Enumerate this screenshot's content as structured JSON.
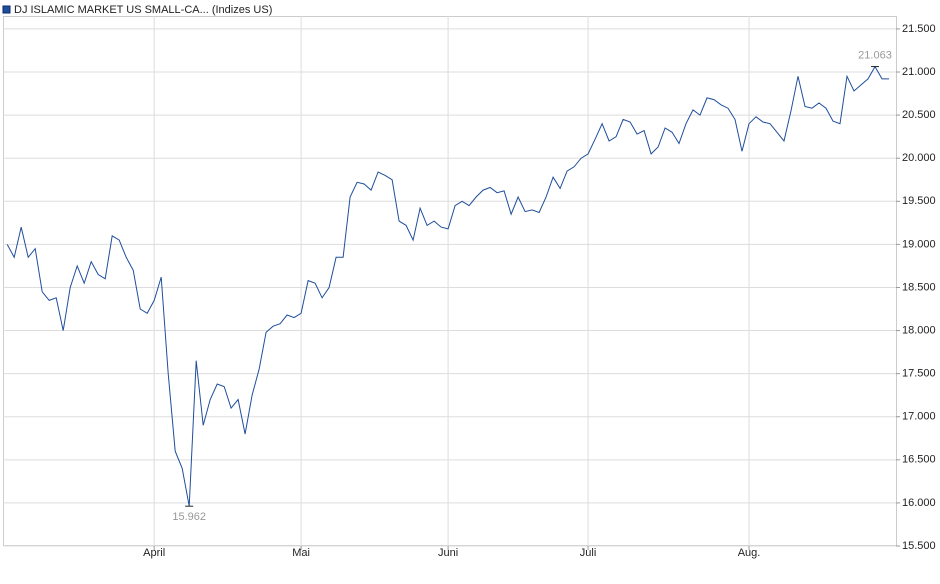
{
  "chart_data": {
    "type": "line",
    "legend_title": "DJ ISLAMIC MARKET US SMALL-CA... (Indizes US)",
    "x": [
      0,
      1,
      2,
      3,
      4,
      5,
      6,
      7,
      8,
      9,
      10,
      11,
      12,
      13,
      14,
      15,
      16,
      17,
      18,
      19,
      20,
      21,
      22,
      23,
      24,
      25,
      26,
      27,
      28,
      29,
      30,
      31,
      32,
      33,
      34,
      35,
      36,
      37,
      38,
      39,
      40,
      41,
      42,
      43,
      44,
      45,
      46,
      47,
      48,
      49,
      50,
      51,
      52,
      53,
      54,
      55,
      56,
      57,
      58,
      59,
      60,
      61,
      62,
      63,
      64,
      65,
      66,
      67,
      68,
      69,
      70,
      71,
      72,
      73,
      74,
      75,
      76,
      77,
      78,
      79,
      80,
      81,
      82,
      83,
      84,
      85,
      86,
      87,
      88,
      89,
      90,
      91,
      92,
      93,
      94,
      95,
      96,
      97,
      98,
      99,
      100,
      101,
      102,
      103,
      104,
      105,
      106,
      107,
      108,
      109,
      110,
      111,
      112,
      113,
      114,
      115,
      116,
      117,
      118,
      119,
      120,
      121,
      122,
      123,
      124,
      125,
      126
    ],
    "series": [
      {
        "name": "DJ ISLAMIC MARKET US SMALL-CA... (Indizes US)",
        "color": "#1f4e9c",
        "values": [
          19000,
          18850,
          19200,
          18850,
          18950,
          18450,
          18350,
          18380,
          18000,
          18500,
          18750,
          18550,
          18800,
          18650,
          18600,
          19100,
          19050,
          18850,
          18700,
          18250,
          18200,
          18350,
          18620,
          17500,
          16600,
          16400,
          15962,
          17650,
          16900,
          17200,
          17380,
          17350,
          17100,
          17200,
          16800,
          17250,
          17550,
          17980,
          18050,
          18080,
          18180,
          18150,
          18200,
          18580,
          18550,
          18380,
          18500,
          18850,
          18850,
          19550,
          19720,
          19700,
          19630,
          19840,
          19800,
          19750,
          19270,
          19220,
          19050,
          19420,
          19220,
          19270,
          19200,
          19180,
          19450,
          19500,
          19450,
          19550,
          19630,
          19660,
          19600,
          19620,
          19350,
          19550,
          19380,
          19400,
          19370,
          19550,
          19780,
          19650,
          19850,
          19900,
          20000,
          20050,
          20220,
          20400,
          20200,
          20250,
          20450,
          20420,
          20280,
          20320,
          20050,
          20130,
          20350,
          20300,
          20170,
          20400,
          20560,
          20500,
          20700,
          20680,
          20620,
          20580,
          20450,
          20080,
          20400,
          20480,
          20420,
          20400,
          20300,
          20200,
          20550,
          20950,
          20600,
          20580,
          20640,
          20580,
          20430,
          20400,
          20950,
          20780,
          20850,
          20920,
          21063,
          20920,
          20920
        ]
      }
    ],
    "xlim": [
      -0.6,
      127
    ],
    "xticks": [
      {
        "value": 21,
        "label": "April"
      },
      {
        "value": 42,
        "label": "Mai"
      },
      {
        "value": 63,
        "label": "Juni"
      },
      {
        "value": 83,
        "label": "Juli"
      },
      {
        "value": 106,
        "label": "Aug."
      }
    ],
    "ylim": [
      15500,
      21650
    ],
    "yticks": [
      {
        "value": 15500,
        "label": "15.500"
      },
      {
        "value": 16000,
        "label": "16.000"
      },
      {
        "value": 16500,
        "label": "16.500"
      },
      {
        "value": 17000,
        "label": "17.000"
      },
      {
        "value": 17500,
        "label": "17.500"
      },
      {
        "value": 18000,
        "label": "18.000"
      },
      {
        "value": 18500,
        "label": "18.500"
      },
      {
        "value": 19000,
        "label": "19.000"
      },
      {
        "value": 19500,
        "label": "19.500"
      },
      {
        "value": 20000,
        "label": "20.000"
      },
      {
        "value": 20500,
        "label": "20.500"
      },
      {
        "value": 21000,
        "label": "21.000"
      },
      {
        "value": 21500,
        "label": "21.500"
      }
    ],
    "annotations": [
      {
        "x": 124,
        "value": 21063,
        "label": "21.063"
      },
      {
        "x": 26,
        "value": 15962,
        "label": "15.962"
      }
    ],
    "grid": true
  }
}
